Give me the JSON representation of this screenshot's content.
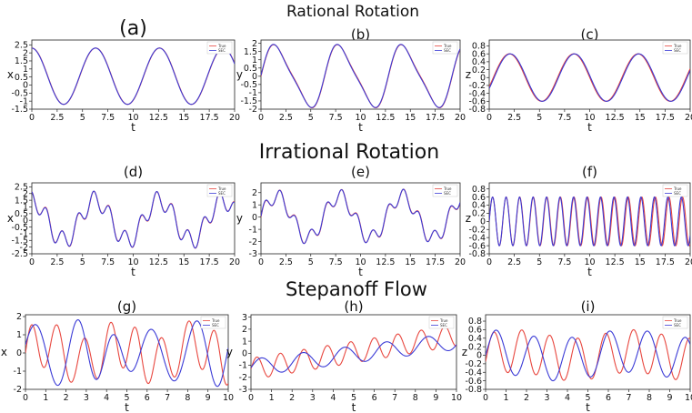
{
  "sections": [
    {
      "title": "Rational Rotation"
    },
    {
      "title": "Irrational Rotation"
    },
    {
      "title": "Stepanoff Flow"
    }
  ],
  "legend_labels": [
    "True",
    "SEC"
  ],
  "colors": {
    "true": "#e8473f",
    "sec": "#3b3bd6"
  },
  "chart_data": [
    {
      "panel": "(a)",
      "type": "line",
      "xlabel": "t",
      "ylabel": "x",
      "xlim": [
        0,
        20
      ],
      "ylim": [
        -1.5,
        2.8
      ],
      "xticks": [
        "0",
        "2.5",
        "5",
        "7.5",
        "10",
        "12.5",
        "15",
        "17.5",
        "20"
      ],
      "yticks": [
        "2.5",
        "2",
        "1.5",
        "1",
        "0.5",
        "0",
        "-0.5",
        "-1",
        "-1.5"
      ],
      "series": [
        {
          "name": "True"
        },
        {
          "name": "SEC"
        }
      ]
    },
    {
      "panel": "(b)",
      "type": "line",
      "xlabel": "t",
      "ylabel": "y",
      "xlim": [
        0,
        20
      ],
      "ylim": [
        -2,
        2.2
      ],
      "xticks": [
        "0",
        "2.5",
        "5",
        "7.5",
        "10",
        "12.5",
        "15",
        "17.5",
        "20"
      ],
      "yticks": [
        "2",
        "1.5",
        "1",
        "0.5",
        "0",
        "-0.5",
        "-1",
        "-1.5",
        "-2"
      ],
      "series": [
        {
          "name": "True"
        },
        {
          "name": "SEC"
        }
      ]
    },
    {
      "panel": "(c)",
      "type": "line",
      "xlabel": "t",
      "ylabel": "z",
      "xlim": [
        0,
        20
      ],
      "ylim": [
        -0.8,
        0.95
      ],
      "xticks": [
        "0",
        "2.5",
        "5",
        "7.5",
        "10",
        "12.5",
        "15",
        "17.5",
        "20"
      ],
      "yticks": [
        "0.8",
        "0.6",
        "0.4",
        "0.2",
        "0",
        "-0.2",
        "-0.4",
        "-0.6",
        "-0.8"
      ],
      "series": [
        {
          "name": "True"
        },
        {
          "name": "SEC"
        }
      ]
    },
    {
      "panel": "(d)",
      "type": "line",
      "xlabel": "t",
      "ylabel": "x",
      "xlim": [
        0,
        20
      ],
      "ylim": [
        -2.5,
        2.8
      ],
      "xticks": [
        "0",
        "2.5",
        "5",
        "7.5",
        "10",
        "12.5",
        "15",
        "17.5",
        "20"
      ],
      "yticks": [
        "2.5",
        "2",
        "1.5",
        "1",
        "0.5",
        "0",
        "-0.5",
        "-1",
        "-1.5",
        "-2",
        "-2.5"
      ],
      "series": [
        {
          "name": "True"
        },
        {
          "name": "SEC"
        }
      ]
    },
    {
      "panel": "(e)",
      "type": "line",
      "xlabel": "t",
      "ylabel": "y",
      "xlim": [
        0,
        20
      ],
      "ylim": [
        -3,
        2.8
      ],
      "xticks": [
        "0",
        "2.5",
        "5",
        "7.5",
        "10",
        "12.5",
        "15",
        "17.5",
        "20"
      ],
      "yticks": [
        "2",
        "1",
        "0",
        "-1",
        "-2",
        "-3"
      ],
      "series": [
        {
          "name": "True"
        },
        {
          "name": "SEC"
        }
      ]
    },
    {
      "panel": "(f)",
      "type": "line",
      "xlabel": "t",
      "ylabel": "z",
      "xlim": [
        0,
        20
      ],
      "ylim": [
        -0.8,
        0.95
      ],
      "xticks": [
        "0",
        "2.5",
        "5",
        "7.5",
        "10",
        "12.5",
        "15",
        "17.5",
        "20"
      ],
      "yticks": [
        "0.8",
        "0.6",
        "0.4",
        "0.2",
        "0",
        "-0.2",
        "-0.4",
        "-0.6",
        "-0.8"
      ],
      "series": [
        {
          "name": "True"
        },
        {
          "name": "SEC"
        }
      ]
    },
    {
      "panel": "(g)",
      "type": "line",
      "xlabel": "t",
      "ylabel": "x",
      "xlim": [
        0,
        10
      ],
      "ylim": [
        -2,
        2.1
      ],
      "xticks": [
        "0",
        "1",
        "2",
        "3",
        "4",
        "5",
        "6",
        "7",
        "8",
        "9",
        "10"
      ],
      "yticks": [
        "2",
        "1",
        "0",
        "-1",
        "-2"
      ],
      "series": [
        {
          "name": "True"
        },
        {
          "name": "SEC"
        }
      ]
    },
    {
      "panel": "(h)",
      "type": "line",
      "xlabel": "t",
      "ylabel": "y",
      "xlim": [
        0,
        10
      ],
      "ylim": [
        -3,
        3.2
      ],
      "xticks": [
        "0",
        "1",
        "2",
        "3",
        "4",
        "5",
        "6",
        "7",
        "8",
        "9",
        "10"
      ],
      "yticks": [
        "3",
        "2",
        "1",
        "0",
        "-1",
        "-2",
        "-3"
      ],
      "series": [
        {
          "name": "True"
        },
        {
          "name": "SEC"
        }
      ]
    },
    {
      "panel": "(i)",
      "type": "line",
      "xlabel": "t",
      "ylabel": "z",
      "xlim": [
        0,
        10
      ],
      "ylim": [
        -0.8,
        0.95
      ],
      "xticks": [
        "0",
        "1",
        "2",
        "3",
        "4",
        "5",
        "6",
        "7",
        "8",
        "9",
        "10"
      ],
      "yticks": [
        "0.8",
        "0.6",
        "0.4",
        "0.2",
        "0",
        "-0.2",
        "-0.4",
        "-0.6",
        "-0.8"
      ],
      "series": [
        {
          "name": "True"
        },
        {
          "name": "SEC"
        }
      ]
    }
  ]
}
